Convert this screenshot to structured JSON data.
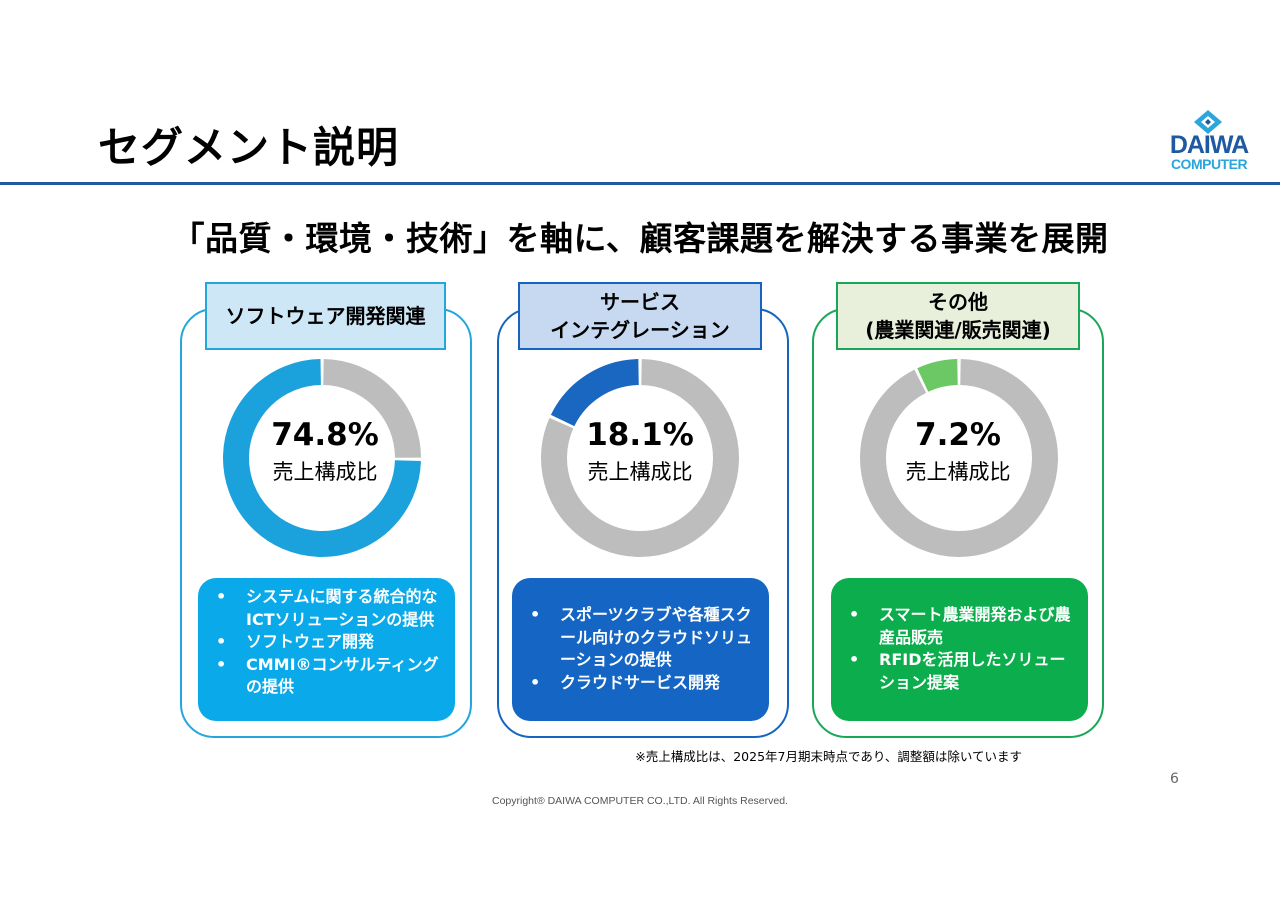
{
  "title": "セグメント説明",
  "logo": {
    "brand": "DAIWA",
    "sub": "COMPUTER"
  },
  "headline": "「品質・環境・技術」を軸に、顧客課題を解決する事業を展開",
  "segments": [
    {
      "label_lines": [
        "ソフトウェア開発関連"
      ],
      "percent_text": "74.8%",
      "caption": "売上構成比",
      "share": 74.8,
      "bullets": [
        "システムに関する統合的なICTソリューションの提供",
        "ソフトウェア開発",
        "CMMI®コンサルティングの提供"
      ],
      "colors": {
        "frame": "#22a6dc",
        "label_bg": "#cde7f7",
        "label_border": "#22a6dc",
        "fill": "#1ba2dc",
        "panel": "#0aa9e9"
      }
    },
    {
      "label_lines": [
        "サービス",
        "インテグレーション"
      ],
      "percent_text": "18.1%",
      "caption": "売上構成比",
      "share": 18.1,
      "bullets": [
        "スポーツクラブや各種スクール向けのクラウドソリューションの提供",
        "クラウドサービス開発"
      ],
      "colors": {
        "frame": "#1565c0",
        "label_bg": "#c6d9f1",
        "label_border": "#1565c0",
        "fill": "#1a67c2",
        "panel": "#1565c4"
      }
    },
    {
      "label_lines": [
        "その他",
        "(農業関連/販売関連)"
      ],
      "percent_text": "7.2%",
      "caption": "売上構成比",
      "share": 7.2,
      "bullets": [
        "スマート農業開発および農産品販売",
        "RFIDを活用したソリューション提案"
      ],
      "colors": {
        "frame": "#1aa657",
        "label_bg": "#e8f0dc",
        "label_border": "#1aa657",
        "fill": "#6cc865",
        "panel": "#0cad4d"
      }
    }
  ],
  "remainder_color": "#bdbdbd",
  "note": "※売上構成比は、2025年7月期末時点であり、調整額は除いています",
  "page_number": "6",
  "copyright": "Copyright® DAIWA COMPUTER CO.,LTD. All Rights Reserved."
}
